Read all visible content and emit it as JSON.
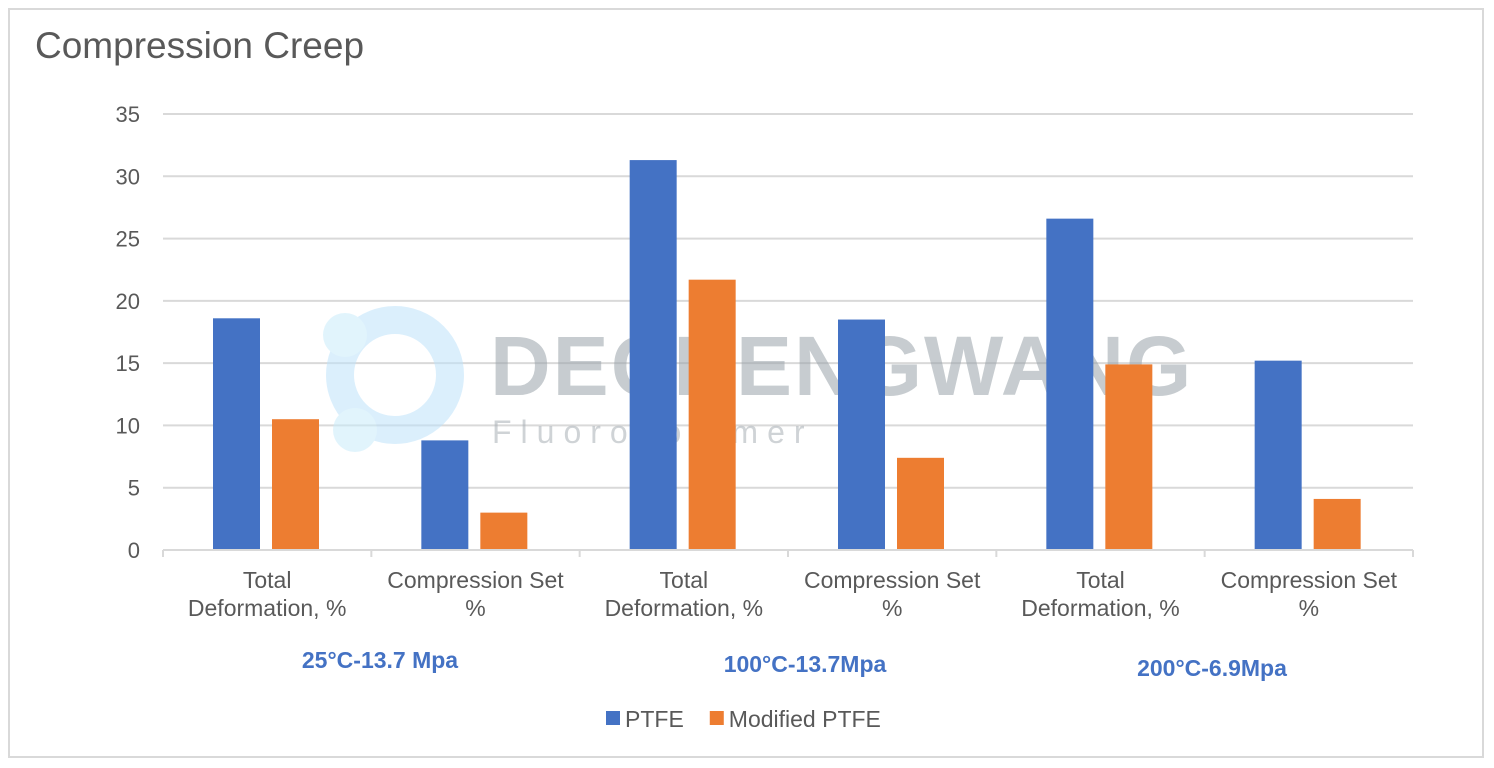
{
  "chart_data": {
    "type": "bar",
    "title": "Compression Creep",
    "categories": [
      [
        "Total",
        "Deformation, %"
      ],
      [
        "Compression Set",
        "%"
      ],
      [
        "Total",
        "Deformation, %"
      ],
      [
        "Compression Set",
        "%"
      ],
      [
        "Total",
        "Deformation, %"
      ],
      [
        "Compression Set",
        "%"
      ]
    ],
    "groups": [
      "25°C-13.7 Mpa",
      "100°C-13.7Mpa",
      "200°C-6.9Mpa"
    ],
    "series": [
      {
        "name": "PTFE",
        "color": "#4472C4",
        "values": [
          18.6,
          8.8,
          31.3,
          18.5,
          26.6,
          15.2
        ]
      },
      {
        "name": "Modified PTFE",
        "color": "#ED7D31",
        "values": [
          10.5,
          3.0,
          21.7,
          7.4,
          14.9,
          4.1
        ]
      }
    ],
    "yticks": [
      0,
      5,
      10,
      15,
      20,
      25,
      30,
      35
    ],
    "ylim": [
      0,
      35
    ],
    "xlabel": "",
    "ylabel": "",
    "grid": true,
    "legend_position": "bottom",
    "group_label_color": "#4472C4"
  },
  "watermark": {
    "brand": "DECHENGWANG",
    "sub": "Fluoropolymer"
  }
}
